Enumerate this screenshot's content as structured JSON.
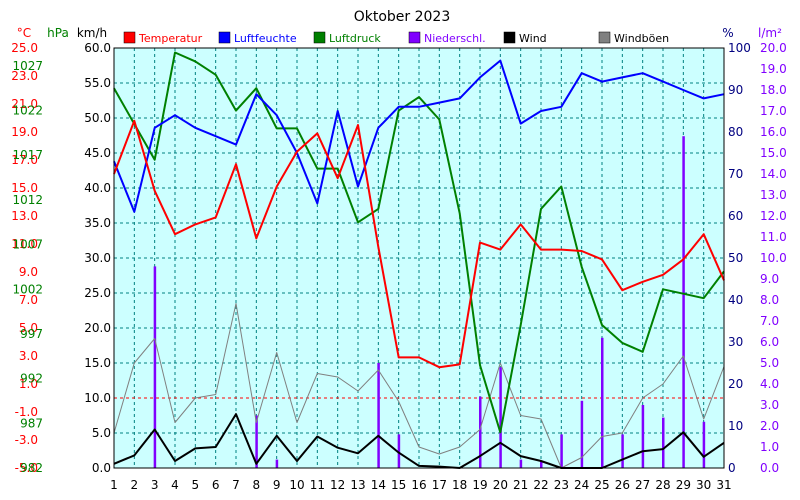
{
  "chart_data": {
    "type": "line",
    "title": "Oktober 2023",
    "x": [
      1,
      2,
      3,
      4,
      5,
      6,
      7,
      8,
      9,
      10,
      11,
      12,
      13,
      14,
      15,
      16,
      17,
      18,
      19,
      20,
      21,
      22,
      23,
      24,
      25,
      26,
      27,
      28,
      29,
      30,
      31
    ],
    "axes": {
      "temperature": {
        "unit": "°C",
        "min": -5,
        "max": 25,
        "ticks": [
          "25.0",
          "23.0",
          "21.0",
          "19.0",
          "17.0",
          "15.0",
          "13.0",
          "11.0",
          "9.0",
          "7.0",
          "5.0",
          "3.0",
          "1.0",
          "-1.0",
          "-3.0",
          "-5.0"
        ]
      },
      "pressure": {
        "unit": "hPa",
        "min": 982,
        "max": 1029,
        "ticks": [
          "1027",
          "1022",
          "1017",
          "1012",
          "1007",
          "1002",
          "997",
          "992",
          "987",
          "982"
        ]
      },
      "wind": {
        "unit": "km/h",
        "min": 0,
        "max": 60,
        "ticks": [
          "60.0",
          "55.0",
          "50.0",
          "45.0",
          "40.0",
          "35.0",
          "30.0",
          "25.0",
          "20.0",
          "15.0",
          "10.0",
          "5.0",
          "0.0"
        ]
      },
      "humidity": {
        "unit": "%",
        "min": 0,
        "max": 100,
        "ticks": [
          "100",
          "90",
          "80",
          "70",
          "60",
          "50",
          "40",
          "30",
          "20",
          "10",
          "0"
        ]
      },
      "precip": {
        "unit": "l/m²",
        "min": 0,
        "max": 20,
        "ticks": [
          "20.0",
          "19.0",
          "18.0",
          "17.0",
          "16.0",
          "15.0",
          "14.0",
          "13.0",
          "12.0",
          "11.0",
          "10.0",
          "9.0",
          "8.0",
          "7.0",
          "6.0",
          "5.0",
          "4.0",
          "3.0",
          "2.0",
          "1.0",
          "0.0"
        ]
      }
    },
    "legend": [
      {
        "label": "Temperatur",
        "color": "#ff0000"
      },
      {
        "label": "Luftfeuchte",
        "color": "#0000ff"
      },
      {
        "label": "Luftdruck",
        "color": "#008000"
      },
      {
        "label": "Niederschl.",
        "color": "#8000ff"
      },
      {
        "label": "Wind",
        "color": "#000000"
      },
      {
        "label": "Windböen",
        "color": "#808080"
      }
    ],
    "series": [
      {
        "name": "Temperatur",
        "axis": "temperature",
        "color": "#ff0000",
        "values": [
          16.0,
          19.8,
          14.8,
          11.7,
          12.4,
          12.9,
          16.7,
          11.4,
          15.1,
          17.6,
          18.9,
          15.7,
          19.5,
          10.8,
          2.9,
          2.9,
          2.2,
          2.4,
          11.1,
          10.6,
          12.4,
          10.6,
          10.6,
          10.5,
          9.9,
          7.7,
          8.3,
          8.8,
          9.9,
          11.7,
          8.4
        ]
      },
      {
        "name": "Luftfeuchte",
        "axis": "humidity",
        "color": "#0000ff",
        "values": [
          73,
          61,
          81,
          84,
          81,
          79,
          77,
          89,
          84,
          75,
          63,
          85,
          67,
          81,
          86,
          86,
          87,
          88,
          93,
          97,
          82,
          85,
          86,
          94,
          92,
          93,
          94,
          92,
          90,
          88,
          89
        ]
      },
      {
        "name": "Luftdruck",
        "axis": "pressure",
        "color": "#008000",
        "values": [
          1024.5,
          1020.5,
          1016.5,
          1028.5,
          1027.5,
          1026,
          1022,
          1024.5,
          1020,
          1020,
          1015.5,
          1015.5,
          1009.5,
          1011,
          1022,
          1023.5,
          1021,
          1010.5,
          993.5,
          986,
          998,
          1011,
          1013.5,
          1004.5,
          998,
          996,
          995,
          1002,
          1001.5,
          1001,
          1004
        ]
      },
      {
        "name": "Niederschl.",
        "axis": "precip",
        "color": "#8000ff",
        "type": "bar",
        "values": [
          0,
          0,
          9.6,
          0,
          0,
          0,
          0,
          2.5,
          0.4,
          0,
          0,
          0,
          0,
          5.0,
          1.6,
          0,
          0,
          0,
          3.4,
          4.8,
          0.4,
          0.3,
          1.6,
          3.2,
          6.2,
          1.6,
          3.0,
          2.4,
          15.8,
          2.2,
          0
        ]
      },
      {
        "name": "Wind",
        "axis": "wind",
        "color": "#000000",
        "values": [
          0.6,
          1.8,
          5.5,
          1.0,
          2.8,
          3.0,
          7.7,
          0.6,
          4.6,
          1.0,
          4.5,
          2.9,
          2.1,
          4.6,
          2.2,
          0.3,
          0.2,
          0,
          1.7,
          3.6,
          1.7,
          1.0,
          0,
          0,
          0,
          1.2,
          2.4,
          2.7,
          5.1,
          1.6,
          3.6
        ]
      },
      {
        "name": "Windböen",
        "axis": "wind",
        "color": "#808080",
        "values": [
          5.0,
          15.0,
          18.5,
          6.5,
          10.0,
          10.5,
          23.5,
          6.5,
          16.5,
          6.5,
          13.5,
          13.0,
          11.0,
          14.0,
          9.5,
          3.0,
          2.0,
          3.0,
          5.5,
          15.0,
          7.5,
          7.0,
          0,
          1.5,
          4.5,
          5.0,
          10.0,
          12.0,
          16.0,
          7.0,
          14.5
        ]
      }
    ],
    "grid": true,
    "legend_position": "top"
  }
}
